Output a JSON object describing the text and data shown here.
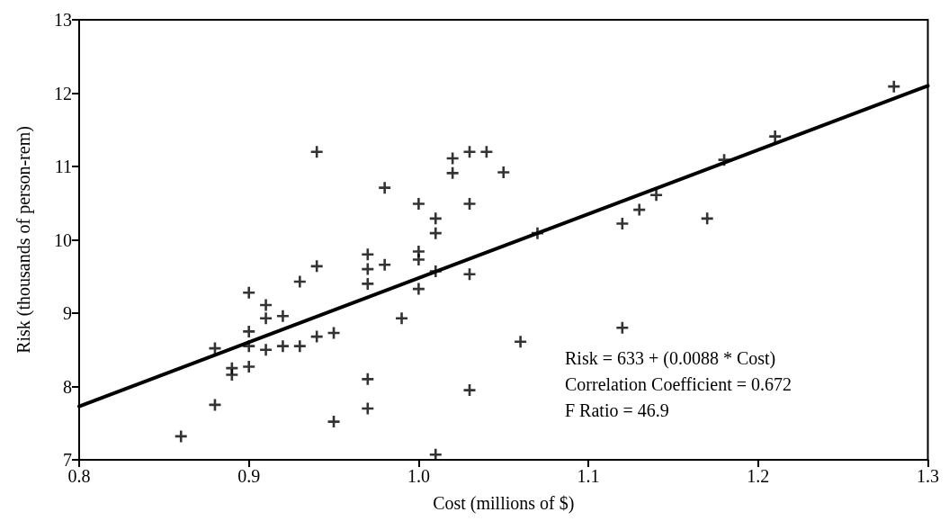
{
  "chart_data": {
    "type": "scatter",
    "xlabel": "Cost (millions of $)",
    "ylabel": "Risk (thousands of person-rem)",
    "xlim": [
      0.8,
      1.3
    ],
    "ylim": [
      7,
      13
    ],
    "xticks": [
      0.8,
      0.9,
      {
        "value": 1,
        "label": "1.0"
      },
      1.1,
      1.2,
      1.3
    ],
    "yticks": [
      7,
      8,
      9,
      10,
      11,
      12,
      13
    ],
    "grid": false,
    "marker": "cross",
    "annotations": [
      "Risk = 633 + (0.0088 * Cost)",
      "Correlation Coefficient = 0.672",
      "F Ratio = 46.9"
    ],
    "series": [
      {
        "color": "#000000",
        "x": [
          0.86,
          0.88,
          0.88,
          0.89,
          0.89,
          0.9,
          0.9,
          0.9,
          0.9,
          0.91,
          0.91,
          0.91,
          0.92,
          0.92,
          0.93,
          0.93,
          0.94,
          0.94,
          0.94,
          0.95,
          0.95,
          0.97,
          0.97,
          0.97,
          0.97,
          0.97,
          0.98,
          0.98,
          0.99,
          1.0,
          1.0,
          1.0,
          1.0,
          1.01,
          1.01,
          1.01,
          1.01,
          1.02,
          1.02,
          1.03,
          1.03,
          1.03,
          1.03,
          1.04,
          1.05,
          1.06,
          1.07,
          1.12,
          1.12,
          1.13,
          1.14,
          1.17,
          1.18,
          1.21,
          1.28
        ],
        "values": [
          7.32,
          8.52,
          7.75,
          8.25,
          8.16,
          9.28,
          8.75,
          8.55,
          8.27,
          9.11,
          8.93,
          8.5,
          8.96,
          8.55,
          9.43,
          8.55,
          11.2,
          9.64,
          8.68,
          8.73,
          7.52,
          9.8,
          9.6,
          9.4,
          8.1,
          7.7,
          10.71,
          9.66,
          8.93,
          10.49,
          9.84,
          9.73,
          9.33,
          10.29,
          10.09,
          9.57,
          7.07,
          11.11,
          10.91,
          11.2,
          10.49,
          9.53,
          7.95,
          11.2,
          10.92,
          8.61,
          10.09,
          10.22,
          8.8,
          10.41,
          10.61,
          10.29,
          11.09,
          11.41,
          12.09
        ]
      },
      {
        "type": "line",
        "color": "#000000",
        "marker": "none",
        "x": [
          0.8,
          1.3
        ],
        "values": [
          7.73,
          12.1
        ]
      }
    ]
  }
}
